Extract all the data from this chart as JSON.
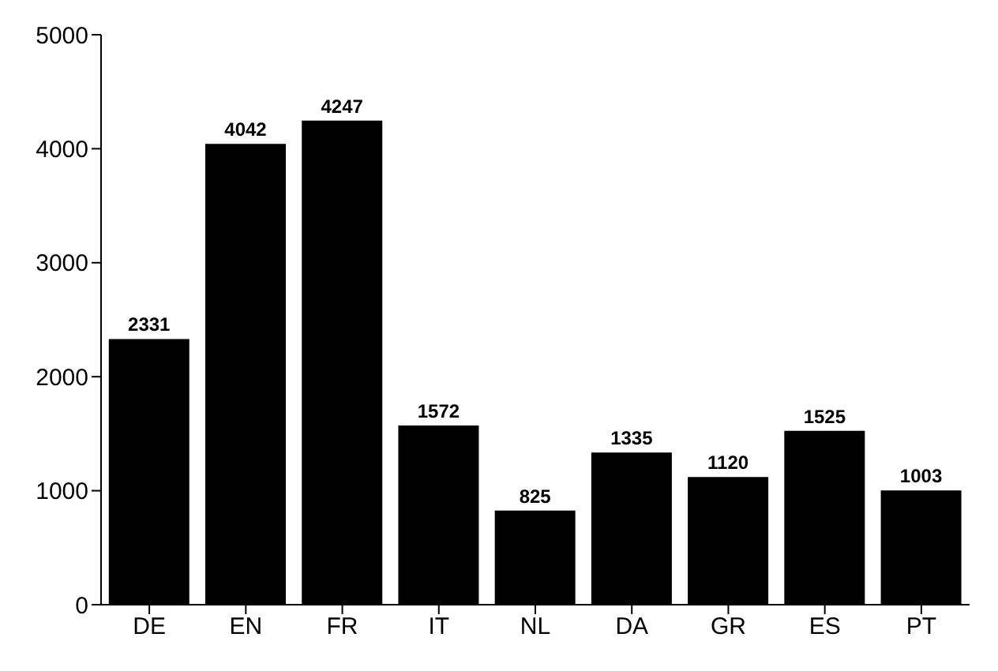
{
  "chart_data": {
    "type": "bar",
    "categories": [
      "DE",
      "EN",
      "FR",
      "IT",
      "NL",
      "DA",
      "GR",
      "ES",
      "PT"
    ],
    "values": [
      2331,
      4042,
      4247,
      1572,
      825,
      1335,
      1120,
      1525,
      1003
    ],
    "color": "#000000",
    "ylim": [
      0,
      5000
    ],
    "yticks": [
      0,
      1000,
      2000,
      3000,
      4000,
      5000
    ],
    "data_labels": true
  }
}
